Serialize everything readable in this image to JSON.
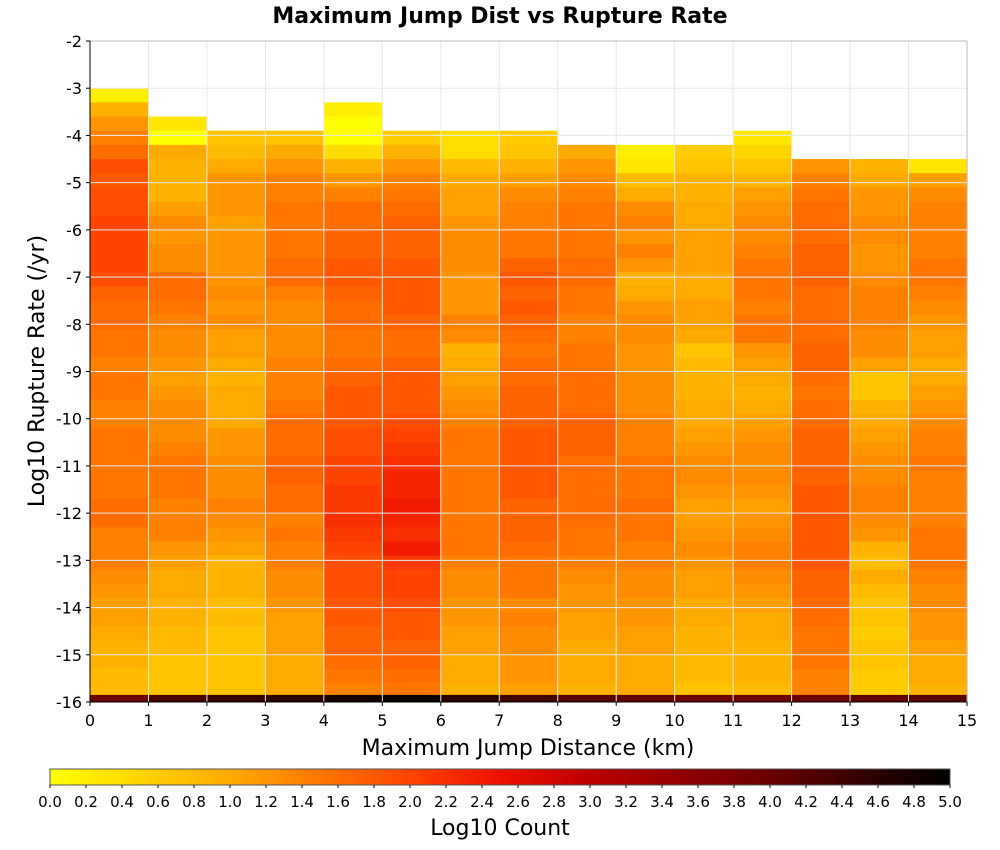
{
  "chart_data": {
    "type": "heatmap",
    "title": "Maximum Jump Dist vs Rupture Rate",
    "xlabel": "Maximum Jump Distance (km)",
    "ylabel": "Log10 Rupture Rate (/yr)",
    "xlim": [
      0,
      15
    ],
    "ylim": [
      -16,
      -2
    ],
    "x_ticks": [
      "0",
      "1",
      "2",
      "3",
      "4",
      "5",
      "6",
      "7",
      "8",
      "9",
      "10",
      "11",
      "12",
      "13",
      "14",
      "15"
    ],
    "y_ticks": [
      "-2",
      "-3",
      "-4",
      "-5",
      "-6",
      "-7",
      "-8",
      "-9",
      "-10",
      "-11",
      "-12",
      "-13",
      "-14",
      "-15",
      "-16"
    ],
    "grid": true,
    "bin_width_x": 1,
    "bin_height_y": 0.3,
    "colorbar": {
      "label": "Log10 Count",
      "min": 0.0,
      "max": 5.0,
      "ticks": [
        "0.0",
        "0.2",
        "0.4",
        "0.6",
        "0.8",
        "1.0",
        "1.2",
        "1.4",
        "1.6",
        "1.8",
        "2.0",
        "2.2",
        "2.4",
        "2.6",
        "2.8",
        "3.0",
        "3.2",
        "3.4",
        "3.6",
        "3.8",
        "4.0",
        "4.2",
        "4.4",
        "4.6",
        "4.8",
        "5.0"
      ],
      "stops": [
        {
          "v": 0.0,
          "color": "#ffff00"
        },
        {
          "v": 1.0,
          "color": "#ffaa00"
        },
        {
          "v": 2.0,
          "color": "#ff4400"
        },
        {
          "v": 2.5,
          "color": "#ee1100"
        },
        {
          "v": 3.0,
          "color": "#bb0000"
        },
        {
          "v": 4.0,
          "color": "#6a0000"
        },
        {
          "v": 5.0,
          "color": "#000000"
        }
      ]
    },
    "columns": [
      {
        "x_start": 0,
        "y_top": -3.0,
        "values": [
          0.2,
          0.9,
          1.2,
          1.4,
          1.6,
          1.9,
          1.8,
          1.9,
          1.9,
          2.0,
          2.0,
          2.0,
          2.0,
          1.9,
          1.7,
          1.6,
          1.6,
          1.5,
          1.5,
          1.4,
          1.5,
          1.5,
          1.4,
          1.4,
          1.5,
          1.5,
          1.5,
          1.5,
          1.5,
          1.6,
          1.6,
          1.4,
          1.4,
          1.4,
          1.3,
          1.2,
          1.1,
          1.1,
          1.0,
          0.9,
          0.9,
          0.8,
          0.8,
          0.7,
          0.7,
          0.5,
          0.4,
          0.4,
          0.3,
          0.2,
          0.2,
          0.2,
          0.2,
          0.2
        ]
      },
      {
        "x_start": 1,
        "y_top": -3.6,
        "values": [
          0.3,
          0.0,
          1.0,
          0.9,
          0.9,
          0.9,
          1.1,
          1.3,
          1.2,
          1.3,
          1.3,
          1.6,
          1.6,
          1.5,
          1.4,
          1.3,
          1.3,
          1.2,
          1.1,
          1.2,
          1.3,
          1.3,
          1.3,
          1.4,
          1.5,
          1.5,
          1.5,
          1.4,
          1.4,
          1.4,
          1.2,
          1.1,
          1.0,
          1.0,
          0.9,
          0.9,
          0.8,
          0.8,
          0.7,
          0.7,
          0.7,
          0.5,
          0.5,
          0.5,
          0.4,
          0.5,
          0.4,
          0.4,
          0.5,
          0.5,
          0.4,
          0.4
        ]
      },
      {
        "x_start": 2,
        "y_top": -3.9,
        "values": [
          0.7,
          0.8,
          1.0,
          1.2,
          1.2,
          1.2,
          1.1,
          1.2,
          1.2,
          1.2,
          1.2,
          1.3,
          1.2,
          1.3,
          1.1,
          1.1,
          1.0,
          0.9,
          1.0,
          1.0,
          1.0,
          1.2,
          1.2,
          1.3,
          1.3,
          1.3,
          1.4,
          1.3,
          1.2,
          1.1,
          0.9,
          0.9,
          0.9,
          0.8,
          0.8,
          0.7,
          0.7,
          0.7,
          0.7,
          0.7,
          0.6,
          0.6,
          0.5,
          0.5,
          0.4,
          0.4,
          0.4,
          0.4,
          0.4,
          0.4,
          0.4
        ]
      },
      {
        "x_start": 3,
        "y_top": -3.9,
        "values": [
          0.7,
          1.0,
          1.2,
          1.4,
          1.4,
          1.5,
          1.5,
          1.5,
          1.5,
          1.6,
          1.6,
          1.4,
          1.3,
          1.3,
          1.3,
          1.3,
          1.4,
          1.4,
          1.4,
          1.5,
          1.6,
          1.6,
          1.6,
          1.7,
          1.7,
          1.6,
          1.6,
          1.4,
          1.5,
          1.4,
          1.4,
          1.3,
          1.3,
          1.2,
          1.1,
          1.1,
          1.1,
          1.0,
          1.0,
          1.0,
          0.9,
          0.9,
          0.9,
          0.8,
          0.8,
          0.7,
          0.6,
          0.7,
          1.0,
          0.5,
          0.5
        ]
      },
      {
        "x_start": 4,
        "y_top": -3.3,
        "values": [
          0.2,
          0.0,
          0.0,
          0.4,
          0.9,
          1.2,
          1.4,
          1.6,
          1.6,
          1.7,
          1.7,
          1.8,
          1.8,
          1.7,
          1.6,
          1.6,
          1.5,
          1.5,
          1.6,
          1.7,
          1.8,
          1.8,
          1.8,
          1.9,
          1.9,
          2.0,
          2.0,
          2.1,
          2.1,
          2.2,
          2.1,
          2.0,
          1.9,
          1.9,
          1.9,
          1.8,
          1.8,
          1.7,
          1.7,
          1.6,
          1.5,
          1.4,
          1.3,
          1.3,
          1.3,
          1.2,
          1.2,
          1.1,
          1.1,
          1.0,
          0.9,
          0.9,
          0.9,
          0.8,
          0.7
        ]
      },
      {
        "x_start": 5,
        "y_top": -3.9,
        "values": [
          0.6,
          0.9,
          1.2,
          1.4,
          1.5,
          1.6,
          1.7,
          1.7,
          1.7,
          1.8,
          1.8,
          1.8,
          1.8,
          1.7,
          1.6,
          1.6,
          1.7,
          1.8,
          1.8,
          1.8,
          1.9,
          2.0,
          2.1,
          2.2,
          2.3,
          2.3,
          2.4,
          2.3,
          2.2,
          2.4,
          2.1,
          2.0,
          2.0,
          1.9,
          1.8,
          1.8,
          1.7,
          1.7,
          1.6,
          1.5,
          1.4,
          1.4,
          1.3,
          1.3,
          1.2,
          1.1,
          1.0,
          1.0,
          0.9,
          0.8,
          0.8
        ]
      },
      {
        "x_start": 6,
        "y_top": -3.9,
        "values": [
          0.4,
          0.4,
          0.8,
          1.0,
          1.1,
          1.1,
          1.2,
          1.3,
          1.3,
          1.3,
          1.2,
          1.2,
          1.2,
          1.4,
          1.3,
          0.9,
          1.0,
          1.1,
          1.2,
          1.3,
          1.4,
          1.5,
          1.5,
          1.5,
          1.5,
          1.5,
          1.5,
          1.5,
          1.5,
          1.5,
          1.4,
          1.3,
          1.3,
          1.2,
          1.2,
          1.1,
          1.1,
          1.0,
          1.0,
          0.9,
          0.9,
          0.8,
          0.8,
          0.7,
          0.7,
          0.6,
          0.5,
          0.5,
          0.4,
          0.4,
          0.4
        ]
      },
      {
        "x_start": 7,
        "y_top": -3.9,
        "values": [
          0.6,
          0.7,
          0.9,
          1.1,
          1.3,
          1.4,
          1.4,
          1.5,
          1.5,
          1.7,
          1.8,
          1.7,
          1.8,
          1.7,
          1.6,
          1.5,
          1.6,
          1.6,
          1.7,
          1.7,
          1.7,
          1.8,
          1.8,
          1.8,
          1.8,
          1.8,
          1.7,
          1.7,
          1.7,
          1.6,
          1.5,
          1.5,
          1.5,
          1.3,
          1.4,
          1.3,
          1.3,
          1.2,
          1.2,
          1.1,
          1.0,
          1.0,
          0.9,
          0.9,
          0.8,
          0.8,
          0.7,
          0.6,
          0.6,
          0.6,
          0.5
        ]
      },
      {
        "x_start": 8,
        "y_top": -4.2,
        "values": [
          1.0,
          1.2,
          1.3,
          1.4,
          1.5,
          1.5,
          1.5,
          1.5,
          1.6,
          1.6,
          1.5,
          1.5,
          1.4,
          1.4,
          1.5,
          1.5,
          1.6,
          1.6,
          1.6,
          1.7,
          1.7,
          1.7,
          1.6,
          1.6,
          1.6,
          1.6,
          1.6,
          1.5,
          1.5,
          1.4,
          1.3,
          1.2,
          1.2,
          1.1,
          1.1,
          1.0,
          1.0,
          1.0,
          0.9,
          0.9,
          0.8,
          0.8,
          0.7,
          0.7,
          0.6,
          0.6,
          0.6,
          0.5,
          0.5,
          0.4
        ]
      },
      {
        "x_start": 9,
        "y_top": -4.2,
        "values": [
          0.2,
          0.3,
          0.8,
          1.0,
          1.3,
          1.4,
          1.2,
          1.4,
          1.2,
          0.9,
          1.0,
          1.2,
          1.3,
          1.3,
          1.2,
          1.2,
          1.3,
          1.3,
          1.3,
          1.4,
          1.4,
          1.4,
          1.5,
          1.5,
          1.5,
          1.6,
          1.5,
          1.5,
          1.4,
          1.4,
          1.3,
          1.3,
          1.2,
          1.2,
          1.1,
          1.1,
          1.0,
          1.0,
          1.0,
          0.9,
          0.9,
          0.8,
          0.8,
          0.7,
          0.7,
          0.6,
          0.5,
          0.2,
          0.4,
          0.5
        ]
      },
      {
        "x_start": 10,
        "y_top": -4.2,
        "values": [
          0.6,
          0.7,
          0.9,
          0.9,
          1.0,
          1.0,
          1.1,
          1.1,
          1.1,
          1.0,
          1.0,
          1.1,
          1.1,
          1.0,
          0.7,
          0.8,
          0.9,
          0.9,
          1.0,
          1.0,
          1.1,
          1.2,
          1.3,
          1.3,
          1.2,
          1.1,
          1.1,
          1.2,
          1.3,
          1.2,
          1.1,
          1.1,
          1.0,
          1.0,
          0.9,
          0.9,
          0.8,
          0.8,
          0.7,
          0.7,
          0.6,
          0.6,
          0.5,
          0.3,
          0.5,
          0.5,
          0.4,
          0.4,
          0.2,
          0.1,
          0.5
        ]
      },
      {
        "x_start": 11,
        "y_top": -3.9,
        "values": [
          0.3,
          0.5,
          0.7,
          0.9,
          1.1,
          1.2,
          1.3,
          1.3,
          1.4,
          1.5,
          1.5,
          1.5,
          1.4,
          1.5,
          1.5,
          1.2,
          1.1,
          1.0,
          0.9,
          1.0,
          1.1,
          1.2,
          1.3,
          1.3,
          1.3,
          1.2,
          1.1,
          1.2,
          1.3,
          1.4,
          1.4,
          1.3,
          1.2,
          1.1,
          1.0,
          1.0,
          0.9,
          0.9,
          0.9,
          0.8,
          0.8,
          0.7,
          0.6,
          0.5,
          0.4,
          0.3,
          0.3,
          0.5,
          0.6,
          0.3,
          0.5
        ]
      },
      {
        "x_start": 12,
        "y_top": -4.5,
        "values": [
          1.2,
          1.4,
          1.5,
          1.6,
          1.6,
          1.6,
          1.7,
          1.7,
          1.7,
          1.6,
          1.6,
          1.6,
          1.6,
          1.7,
          1.7,
          1.6,
          1.5,
          1.6,
          1.6,
          1.7,
          1.7,
          1.7,
          1.7,
          1.8,
          1.8,
          1.8,
          1.8,
          1.8,
          1.8,
          1.7,
          1.7,
          1.6,
          1.6,
          1.5,
          1.5,
          1.5,
          1.4,
          1.4,
          1.3,
          1.3,
          1.2,
          1.1,
          1.1,
          1.0,
          0.9,
          0.7,
          0.7,
          0.6
        ]
      },
      {
        "x_start": 13,
        "y_top": -4.5,
        "values": [
          0.9,
          1.0,
          1.2,
          1.2,
          1.3,
          1.3,
          1.2,
          1.2,
          1.3,
          1.4,
          1.4,
          1.4,
          1.3,
          1.3,
          1.1,
          0.7,
          0.7,
          0.9,
          1.0,
          1.1,
          1.2,
          1.3,
          1.3,
          1.4,
          1.4,
          1.3,
          1.2,
          0.9,
          0.8,
          1.0,
          0.8,
          0.7,
          0.7,
          0.6,
          0.7,
          0.7,
          0.6,
          0.6,
          0.5,
          0.6,
          0.5,
          0.4,
          0.6,
          0.4,
          0.5,
          0.3,
          0.3,
          0.3
        ]
      },
      {
        "x_start": 14,
        "y_top": -4.5,
        "values": [
          0.3,
          1.1,
          1.3,
          1.4,
          1.4,
          1.4,
          1.4,
          1.5,
          1.5,
          1.4,
          1.3,
          1.2,
          1.1,
          1.1,
          1.0,
          1.0,
          1.1,
          1.2,
          1.3,
          1.4,
          1.4,
          1.5,
          1.4,
          1.4,
          1.4,
          1.4,
          1.5,
          1.5,
          1.5,
          1.4,
          1.3,
          1.3,
          1.2,
          1.2,
          1.1,
          1.0,
          1.0,
          0.9,
          0.8,
          0.7,
          0.7,
          0.6,
          0.6,
          0.6,
          0.5,
          0.5,
          0.5,
          0.5
        ]
      }
    ],
    "bottom_row": {
      "y_start": -16.0,
      "y_end": -15.85,
      "values": [
        4.0,
        4.3,
        4.5,
        4.6,
        4.8,
        4.9,
        4.6,
        4.4,
        4.2,
        4.1,
        4.0,
        4.0,
        4.0,
        4.1,
        4.2
      ]
    }
  }
}
